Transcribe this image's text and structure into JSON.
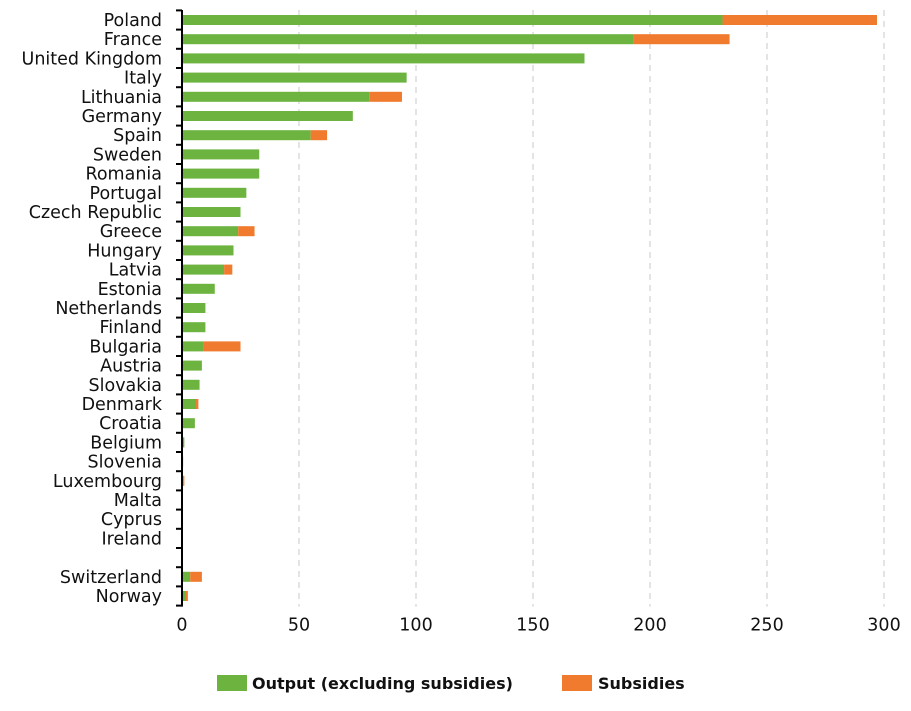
{
  "chart_data": {
    "type": "bar",
    "orientation": "horizontal",
    "stacked": true,
    "categories": [
      "Poland",
      "France",
      "United Kingdom",
      "Italy",
      "Lithuania",
      "Germany",
      "Spain",
      "Sweden",
      "Romania",
      "Portugal",
      "Czech Republic",
      "Greece",
      "Hungary",
      "Latvia",
      "Estonia",
      "Netherlands",
      "Finland",
      "Bulgaria",
      "Austria",
      "Slovakia",
      "Denmark",
      "Croatia",
      "Belgium",
      "Slovenia",
      "Luxembourg",
      "Malta",
      "Cyprus",
      "Ireland",
      "",
      "Switzerland",
      "Norway"
    ],
    "series": [
      {
        "name": "Output (excluding subsidies)",
        "color": "#6cb33f",
        "values": [
          231,
          193,
          172,
          96,
          80,
          73,
          55,
          33,
          33,
          27.5,
          25,
          24,
          22,
          18,
          14,
          10,
          10,
          9,
          8.5,
          7.5,
          6,
          5.5,
          1,
          0.5,
          0.5,
          0,
          0,
          0,
          null,
          3.5,
          1.5
        ]
      },
      {
        "name": "Subsidies",
        "color": "#f07a2d",
        "values": [
          66,
          41,
          0,
          0,
          14,
          0,
          7,
          0,
          0,
          0,
          0,
          7,
          0,
          3.5,
          0,
          0,
          0,
          16,
          0,
          0,
          1,
          0,
          0,
          0,
          0.5,
          0,
          0,
          0,
          null,
          5,
          1
        ]
      }
    ],
    "xlim": [
      0,
      300
    ],
    "xticks": [
      "0",
      "50",
      "100",
      "150",
      "200",
      "250",
      "300"
    ],
    "grid": "vertical dashed",
    "legend_position": "bottom-center"
  }
}
